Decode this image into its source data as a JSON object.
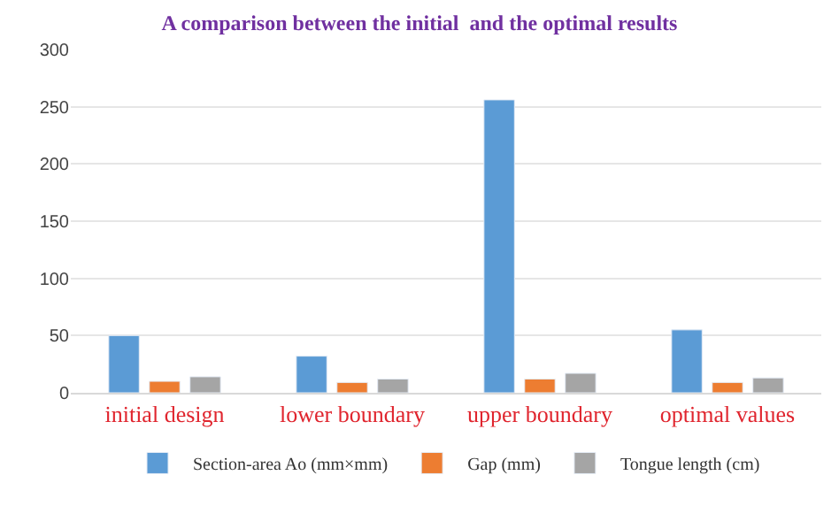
{
  "chart_data": {
    "type": "bar",
    "title": "A comparison between the initial  and the optimal results",
    "categories": [
      "initial design",
      "lower boundary",
      "upper boundary",
      "optimal values"
    ],
    "series": [
      {
        "name": "Section-area Ao (mm×mm)",
        "color": "#5b9bd5",
        "values": [
          50,
          32,
          256,
          55
        ]
      },
      {
        "name": "Gap (mm)",
        "color": "#ed7d31",
        "values": [
          10,
          9,
          12,
          9
        ]
      },
      {
        "name": "Tongue length (cm)",
        "color": "#a5a5a5",
        "values": [
          14,
          12,
          17,
          13
        ]
      }
    ],
    "ylim": [
      0,
      300
    ],
    "yticks": [
      0,
      50,
      100,
      150,
      200,
      250,
      300
    ],
    "grid": "y",
    "legend": "bottom"
  }
}
